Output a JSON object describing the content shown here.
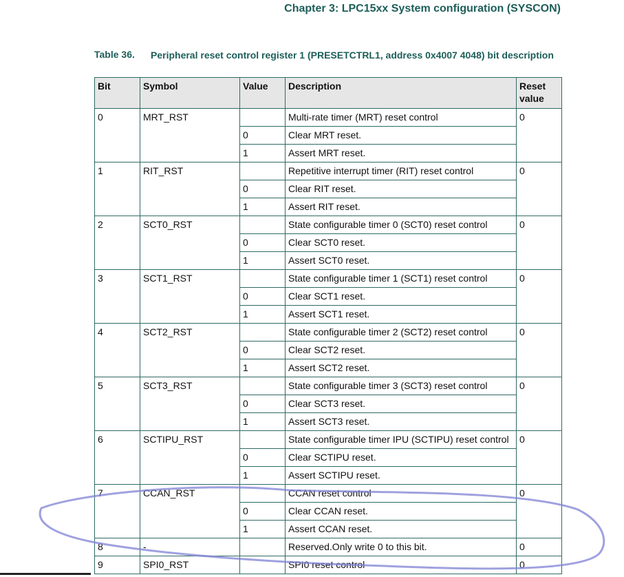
{
  "header": {
    "chapter": "Chapter 3: LPC15xx System configuration (SYSCON)"
  },
  "table": {
    "number": "Table 36.",
    "caption": "Peripheral reset control register 1 (PRESETCTRL1, address 0x4007 4048) bit description",
    "columns": [
      "Bit",
      "Symbol",
      "Value",
      "Description",
      "Reset value"
    ],
    "rows": [
      {
        "bit": "0",
        "symbol": "MRT_RST",
        "reset": "0",
        "entries": [
          {
            "description": "Multi-rate timer (MRT) reset control"
          },
          {
            "value": "0",
            "description": "Clear MRT reset."
          },
          {
            "value": "1",
            "description": "Assert MRT reset."
          }
        ]
      },
      {
        "bit": "1",
        "symbol": "RIT_RST",
        "reset": "0",
        "entries": [
          {
            "description": "Repetitive interrupt timer (RIT) reset control"
          },
          {
            "value": "0",
            "description": "Clear RIT reset."
          },
          {
            "value": "1",
            "description": "Assert RIT reset."
          }
        ]
      },
      {
        "bit": "2",
        "symbol": "SCT0_RST",
        "reset": "0",
        "entries": [
          {
            "description": "State configurable timer 0 (SCT0) reset control"
          },
          {
            "value": "0",
            "description": "Clear SCT0 reset."
          },
          {
            "value": "1",
            "description": "Assert SCT0 reset."
          }
        ]
      },
      {
        "bit": "3",
        "symbol": "SCT1_RST",
        "reset": "0",
        "entries": [
          {
            "description": "State configurable timer 1 (SCT1) reset control"
          },
          {
            "value": "0",
            "description": "Clear SCT1 reset."
          },
          {
            "value": "1",
            "description": "Assert SCT1 reset."
          }
        ]
      },
      {
        "bit": "4",
        "symbol": "SCT2_RST",
        "reset": "0",
        "entries": [
          {
            "description": "State configurable timer 2 (SCT2) reset control"
          },
          {
            "value": "0",
            "description": "Clear SCT2 reset."
          },
          {
            "value": "1",
            "description": "Assert SCT2 reset."
          }
        ]
      },
      {
        "bit": "5",
        "symbol": "SCT3_RST",
        "reset": "0",
        "entries": [
          {
            "description": "State configurable timer 3 (SCT3) reset control"
          },
          {
            "value": "0",
            "description": "Clear SCT3 reset."
          },
          {
            "value": "1",
            "description": "Assert SCT3 reset."
          }
        ]
      },
      {
        "bit": "6",
        "symbol": "SCTIPU_RST",
        "reset": "0",
        "entries": [
          {
            "description": "State configurable timer IPU (SCTIPU) reset control"
          },
          {
            "value": "0",
            "description": "Clear SCTIPU reset."
          },
          {
            "value": "1",
            "description": "Assert SCTIPU reset."
          }
        ]
      },
      {
        "bit": "7",
        "symbol": "CCAN_RST",
        "reset": "0",
        "entries": [
          {
            "description": "CCAN reset control"
          },
          {
            "value": "0",
            "description": "Clear CCAN reset."
          },
          {
            "value": "1",
            "description": "Assert CCAN reset."
          }
        ]
      },
      {
        "bit": "8",
        "symbol": "-",
        "reset": "0",
        "entries": [
          {
            "description": "Reserved.Only write 0 to this bit."
          }
        ]
      },
      {
        "bit": "9",
        "symbol": "SPI0_RST",
        "reset": "0",
        "entries": [
          {
            "description": "SPI0 reset control"
          }
        ]
      }
    ]
  }
}
